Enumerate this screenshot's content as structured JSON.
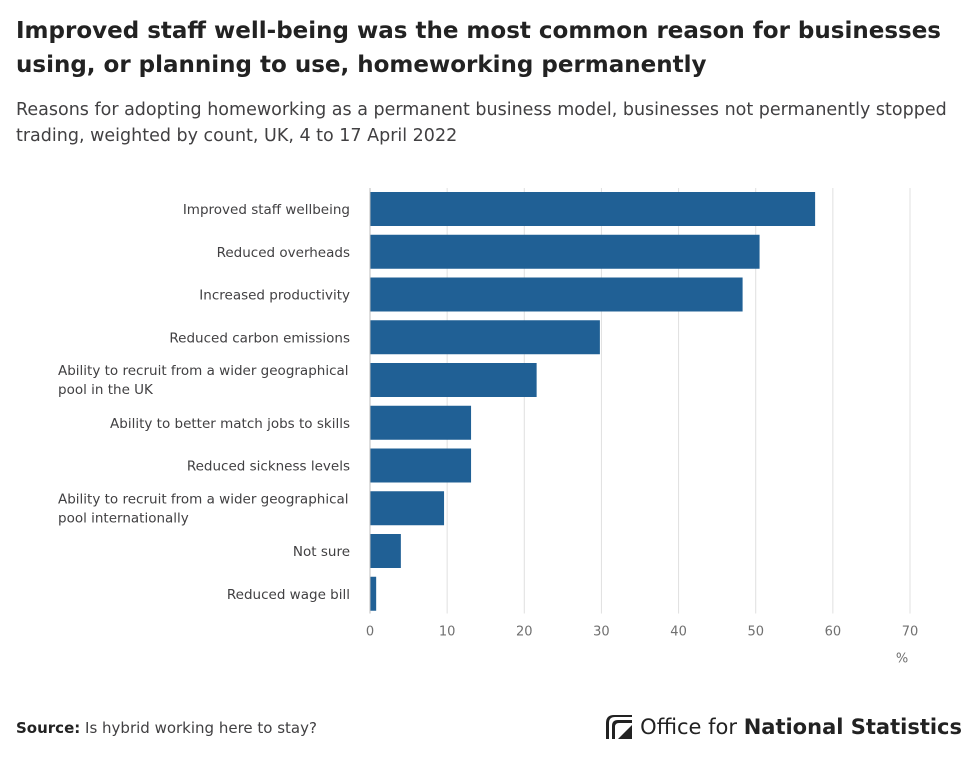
{
  "title": "Improved staff well-being was the most common reason for businesses using, or planning to use, homeworking permanently",
  "subtitle": "Reasons for adopting homeworking as a permanent business model, businesses not permanently stopped trading, weighted by count, UK, 4 to 17 April 2022",
  "footer": {
    "source_label": "Source:",
    "source_text": "Is hybrid working here to stay?",
    "logo_text_light": "Office for ",
    "logo_text_bold": "National Statistics"
  },
  "colors": {
    "bar": "#206095",
    "grid": "#e0e0e0",
    "axis_text": "#707070",
    "label_text": "#414042"
  },
  "chart_data": {
    "type": "bar",
    "orientation": "horizontal",
    "categories": [
      [
        "Improved staff wellbeing"
      ],
      [
        "Reduced overheads"
      ],
      [
        "Increased productivity"
      ],
      [
        "Reduced carbon emissions"
      ],
      [
        "Ability to recruit from a wider geographical",
        "pool in the UK"
      ],
      [
        "Ability to better match jobs to skills"
      ],
      [
        "Reduced sickness levels"
      ],
      [
        "Ability to recruit from a wider geographical",
        "pool internationally"
      ],
      [
        "Not sure"
      ],
      [
        "Reduced wage bill"
      ]
    ],
    "values": [
      57.7,
      50.5,
      48.3,
      29.8,
      21.6,
      13.1,
      13.1,
      9.6,
      4.0,
      0.8
    ],
    "xlim": [
      0,
      70
    ],
    "ticks": [
      0,
      10,
      20,
      30,
      40,
      50,
      60,
      70
    ],
    "xlabel": "%",
    "grid": true
  }
}
